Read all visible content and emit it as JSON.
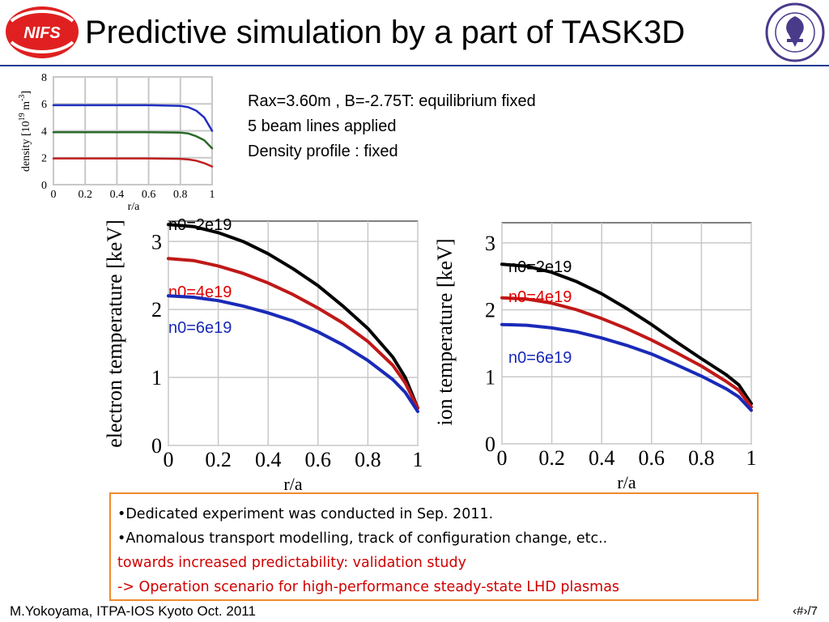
{
  "title": "Predictive simulation by a part of TASK3D",
  "logo_left": {
    "text": "NIFS",
    "icon": "nifs-logo-icon",
    "color": "#e02020"
  },
  "logo_right": {
    "icon": "kyoto-university-seal-icon",
    "color": "#4a3a8a"
  },
  "info_lines": [
    "Rax=3.60m , B=-2.75T: equilibrium fixed",
    "5 beam lines applied",
    "Density profile : fixed"
  ],
  "notes": [
    {
      "text": "•Dedicated experiment was conducted in Sep. 2011.",
      "color": "#000000"
    },
    {
      "text": "•Anomalous transport modelling, track of configuration change, etc..",
      "color": "#000000"
    },
    {
      "text": "towards increased predictability: validation study",
      "color": "#d00000"
    },
    {
      "text": "-> Operation scenario for high-performance steady-state LHD plasmas",
      "color": "#d00000"
    }
  ],
  "footer": "M.Yokoyama, ITPA-IOS Kyoto Oct. 2011",
  "page_number": "‹#›/7",
  "chart_data": [
    {
      "type": "line",
      "xlabel": "r/a",
      "ylabel": "density [10",
      "ylabel_sup1": "19",
      "ylabel_mid": " m",
      "ylabel_sup2": "-3",
      "ylabel_end": "]",
      "xlim": [
        0,
        1
      ],
      "ylim": [
        0,
        8
      ],
      "xticks": [
        "0",
        "0.2",
        "0.4",
        "0.6",
        "0.8",
        "1"
      ],
      "yticks": [
        "0",
        "2",
        "4",
        "6",
        "8"
      ],
      "grid": true,
      "series": [
        {
          "color": "#1f2fbf",
          "x": [
            0,
            0.2,
            0.4,
            0.6,
            0.8,
            0.85,
            0.9,
            0.95,
            1.0
          ],
          "y": [
            5.9,
            5.9,
            5.9,
            5.9,
            5.85,
            5.75,
            5.5,
            5.0,
            4.0
          ]
        },
        {
          "color": "#2a6a2a",
          "x": [
            0,
            0.2,
            0.4,
            0.6,
            0.8,
            0.85,
            0.9,
            0.95,
            1.0
          ],
          "y": [
            3.9,
            3.9,
            3.9,
            3.9,
            3.87,
            3.8,
            3.6,
            3.3,
            2.7
          ]
        },
        {
          "color": "#c02020",
          "x": [
            0,
            0.2,
            0.4,
            0.6,
            0.8,
            0.85,
            0.9,
            0.95,
            1.0
          ],
          "y": [
            1.95,
            1.95,
            1.95,
            1.95,
            1.92,
            1.87,
            1.78,
            1.6,
            1.35
          ]
        }
      ]
    },
    {
      "type": "line",
      "xlabel": "r/a",
      "ylabel": "electron temperature [keV]",
      "xlim": [
        0,
        1
      ],
      "ylim": [
        0,
        3.3
      ],
      "xticks": [
        "0",
        "0.2",
        "0.4",
        "0.6",
        "0.8",
        "1"
      ],
      "yticks": [
        "0",
        "1",
        "2",
        "3"
      ],
      "grid": true,
      "series": [
        {
          "name": "n0=2e19",
          "color": "#000000",
          "label_color": "#000000",
          "x": [
            0,
            0.1,
            0.2,
            0.3,
            0.4,
            0.5,
            0.6,
            0.7,
            0.8,
            0.9,
            0.95,
            1.0
          ],
          "y": [
            3.25,
            3.22,
            3.13,
            3.0,
            2.82,
            2.6,
            2.35,
            2.05,
            1.72,
            1.3,
            1.0,
            0.55
          ]
        },
        {
          "name": "n0=4e19",
          "color": "#c01818",
          "label_color": "#e00000",
          "x": [
            0,
            0.1,
            0.2,
            0.3,
            0.4,
            0.5,
            0.6,
            0.7,
            0.8,
            0.9,
            0.95,
            1.0
          ],
          "y": [
            2.75,
            2.72,
            2.64,
            2.53,
            2.39,
            2.22,
            2.02,
            1.8,
            1.53,
            1.18,
            0.92,
            0.55
          ]
        },
        {
          "name": "n0=6e19",
          "color": "#1a2ab8",
          "label_color": "#1a2ab8",
          "x": [
            0,
            0.1,
            0.2,
            0.3,
            0.4,
            0.5,
            0.6,
            0.7,
            0.8,
            0.9,
            0.95,
            1.0
          ],
          "y": [
            2.2,
            2.18,
            2.13,
            2.05,
            1.95,
            1.83,
            1.67,
            1.48,
            1.25,
            0.97,
            0.78,
            0.5
          ]
        }
      ]
    },
    {
      "type": "line",
      "xlabel": "r/a",
      "ylabel": "ion temperature [keV]",
      "xlim": [
        0,
        1
      ],
      "ylim": [
        0,
        3.3
      ],
      "xticks": [
        "0",
        "0.2",
        "0.4",
        "0.6",
        "0.8",
        "1"
      ],
      "yticks": [
        "0",
        "1",
        "2",
        "3"
      ],
      "grid": true,
      "series": [
        {
          "name": "n0=2e19",
          "color": "#000000",
          "label_color": "#000000",
          "x": [
            0,
            0.1,
            0.2,
            0.3,
            0.4,
            0.5,
            0.6,
            0.7,
            0.8,
            0.9,
            0.95,
            1.0
          ],
          "y": [
            2.68,
            2.65,
            2.56,
            2.42,
            2.24,
            2.02,
            1.78,
            1.52,
            1.27,
            1.03,
            0.88,
            0.6
          ]
        },
        {
          "name": "n0=4e19",
          "color": "#c01818",
          "label_color": "#e00000",
          "x": [
            0,
            0.1,
            0.2,
            0.3,
            0.4,
            0.5,
            0.6,
            0.7,
            0.8,
            0.9,
            0.95,
            1.0
          ],
          "y": [
            2.18,
            2.16,
            2.1,
            2.0,
            1.87,
            1.72,
            1.55,
            1.36,
            1.16,
            0.93,
            0.8,
            0.55
          ]
        },
        {
          "name": "n0=6e19",
          "color": "#1a2ab8",
          "label_color": "#1a2ab8",
          "x": [
            0,
            0.1,
            0.2,
            0.3,
            0.4,
            0.5,
            0.6,
            0.7,
            0.8,
            0.9,
            0.95,
            1.0
          ],
          "y": [
            1.78,
            1.77,
            1.73,
            1.67,
            1.58,
            1.47,
            1.34,
            1.18,
            1.01,
            0.82,
            0.7,
            0.5
          ]
        }
      ]
    }
  ]
}
